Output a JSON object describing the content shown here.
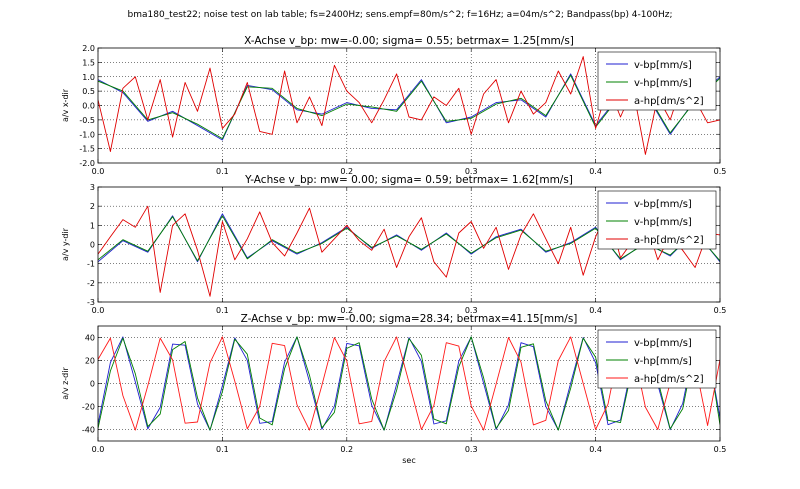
{
  "figure": {
    "suptitle": "bma180_test22; noise test on lab table; fs=2400Hz; sens.empf=80m/s^2; f=16Hz; a=04m/s^2; Bandpass(bp) 4-100Hz;"
  },
  "colors": {
    "v_bp": "#1f1fd0",
    "v_hp": "#008000",
    "a_hp": "#e00000",
    "grid": "#000000"
  },
  "chart_data": [
    {
      "type": "line",
      "title": "X-Achse v_bp: mw=-0.00; sigma= 0.55; betrmax= 1.25[mm/s]",
      "xlabel": "",
      "ylabel": "a/v x-dir",
      "xlim": [
        0,
        0.5
      ],
      "ylim": [
        -2.0,
        2.0
      ],
      "xticks": [
        "0.0",
        "0.1",
        "0.2",
        "0.3",
        "0.4",
        "0.5"
      ],
      "yticks": [
        "-2.0",
        "-1.5",
        "-1.0",
        "-0.5",
        "0.0",
        "0.5",
        "1.0",
        "1.5",
        "2.0"
      ],
      "grid": true,
      "legend_position": "upper-right",
      "series": [
        {
          "name": "v-bp[mm/s]",
          "color": "#1f1fd0",
          "x": [
            0.0,
            0.02,
            0.04,
            0.06,
            0.08,
            0.1,
            0.12,
            0.14,
            0.16,
            0.18,
            0.2,
            0.22,
            0.24,
            0.26,
            0.28,
            0.3,
            0.32,
            0.34,
            0.36,
            0.38,
            0.4,
            0.42,
            0.44,
            0.46,
            0.48,
            0.5
          ],
          "y": [
            0.9,
            0.45,
            -0.55,
            -0.2,
            -0.7,
            -1.2,
            0.7,
            0.55,
            -0.15,
            -0.3,
            0.1,
            -0.1,
            -0.15,
            0.9,
            -0.6,
            -0.4,
            0.1,
            0.2,
            -0.4,
            1.1,
            -0.7,
            0.4,
            0.45,
            -1.0,
            0.2,
            1.0
          ]
        },
        {
          "name": "v-hp[mm/s]",
          "color": "#008000",
          "x": [
            0.0,
            0.02,
            0.04,
            0.06,
            0.08,
            0.1,
            0.12,
            0.14,
            0.16,
            0.18,
            0.2,
            0.22,
            0.24,
            0.26,
            0.28,
            0.3,
            0.32,
            0.34,
            0.36,
            0.38,
            0.4,
            0.42,
            0.44,
            0.46,
            0.48,
            0.5
          ],
          "y": [
            0.85,
            0.5,
            -0.5,
            -0.25,
            -0.65,
            -1.15,
            0.65,
            0.6,
            -0.1,
            -0.35,
            0.05,
            -0.05,
            -0.2,
            0.85,
            -0.55,
            -0.45,
            0.05,
            0.25,
            -0.35,
            1.05,
            -0.75,
            0.35,
            0.5,
            -0.95,
            0.15,
            0.95
          ]
        },
        {
          "name": "a-hp[dm/s^2]",
          "color": "#e00000",
          "x": [
            0.0,
            0.01,
            0.02,
            0.03,
            0.04,
            0.05,
            0.06,
            0.07,
            0.08,
            0.09,
            0.1,
            0.11,
            0.12,
            0.13,
            0.14,
            0.15,
            0.16,
            0.17,
            0.18,
            0.19,
            0.2,
            0.21,
            0.22,
            0.23,
            0.24,
            0.25,
            0.26,
            0.27,
            0.28,
            0.29,
            0.3,
            0.31,
            0.32,
            0.33,
            0.34,
            0.35,
            0.36,
            0.37,
            0.38,
            0.39,
            0.4,
            0.41,
            0.42,
            0.43,
            0.44,
            0.45,
            0.46,
            0.47,
            0.48,
            0.49,
            0.5
          ],
          "y": [
            0.2,
            -1.6,
            0.6,
            1.0,
            -0.5,
            0.9,
            -1.1,
            0.8,
            -0.2,
            1.3,
            -0.8,
            -0.3,
            0.8,
            -0.9,
            -1.0,
            1.2,
            -0.6,
            0.3,
            -0.7,
            1.4,
            0.5,
            0.1,
            -0.6,
            0.2,
            1.1,
            -0.4,
            -0.5,
            0.3,
            0.0,
            0.6,
            -1.0,
            0.4,
            0.9,
            -0.6,
            0.5,
            -0.3,
            0.1,
            1.2,
            0.4,
            1.7,
            -0.8,
            0.7,
            -0.4,
            0.6,
            -1.7,
            0.3,
            -0.5,
            0.8,
            0.2,
            -0.6,
            -0.5
          ]
        }
      ]
    },
    {
      "type": "line",
      "title": "Y-Achse v_bp: mw= 0.00; sigma= 0.59; betrmax= 1.62[mm/s]",
      "xlabel": "",
      "ylabel": "a/v y-dir",
      "xlim": [
        0,
        0.5
      ],
      "ylim": [
        -3,
        3
      ],
      "xticks": [
        "0.0",
        "0.1",
        "0.2",
        "0.3",
        "0.4",
        "0.5"
      ],
      "yticks": [
        "-3",
        "-2",
        "-1",
        "0",
        "1",
        "2",
        "3"
      ],
      "grid": true,
      "legend_position": "upper-right",
      "series": [
        {
          "name": "v-bp[mm/s]",
          "color": "#1f1fd0",
          "x": [
            0.0,
            0.02,
            0.04,
            0.06,
            0.08,
            0.1,
            0.12,
            0.14,
            0.16,
            0.18,
            0.2,
            0.22,
            0.24,
            0.26,
            0.28,
            0.3,
            0.32,
            0.34,
            0.36,
            0.38,
            0.4,
            0.42,
            0.44,
            0.46,
            0.48,
            0.5
          ],
          "y": [
            -0.9,
            0.2,
            -0.4,
            1.5,
            -0.9,
            1.6,
            -0.7,
            0.2,
            -0.5,
            0.1,
            0.9,
            -0.2,
            0.5,
            -0.3,
            0.6,
            -0.5,
            0.4,
            0.8,
            -0.4,
            0.1,
            0.9,
            -0.8,
            0.1,
            -0.6,
            0.7,
            -0.9
          ]
        },
        {
          "name": "v-hp[mm/s]",
          "color": "#008000",
          "x": [
            0.0,
            0.02,
            0.04,
            0.06,
            0.08,
            0.1,
            0.12,
            0.14,
            0.16,
            0.18,
            0.2,
            0.22,
            0.24,
            0.26,
            0.28,
            0.3,
            0.32,
            0.34,
            0.36,
            0.38,
            0.4,
            0.42,
            0.44,
            0.46,
            0.48,
            0.5
          ],
          "y": [
            -0.8,
            0.25,
            -0.35,
            1.45,
            -0.85,
            1.5,
            -0.75,
            0.25,
            -0.45,
            0.05,
            0.85,
            -0.15,
            0.45,
            -0.25,
            0.55,
            -0.45,
            0.35,
            0.75,
            -0.35,
            0.05,
            0.85,
            -0.75,
            0.05,
            -0.55,
            0.65,
            -0.85
          ]
        },
        {
          "name": "a-hp[dm/s^2]",
          "color": "#e00000",
          "x": [
            0.0,
            0.01,
            0.02,
            0.03,
            0.04,
            0.05,
            0.06,
            0.07,
            0.08,
            0.09,
            0.1,
            0.11,
            0.12,
            0.13,
            0.14,
            0.15,
            0.16,
            0.17,
            0.18,
            0.19,
            0.2,
            0.21,
            0.22,
            0.23,
            0.24,
            0.25,
            0.26,
            0.27,
            0.28,
            0.29,
            0.3,
            0.31,
            0.32,
            0.33,
            0.34,
            0.35,
            0.36,
            0.37,
            0.38,
            0.39,
            0.4,
            0.41,
            0.42,
            0.43,
            0.44,
            0.45,
            0.46,
            0.47,
            0.48,
            0.49,
            0.5
          ],
          "y": [
            -0.5,
            0.4,
            1.3,
            0.9,
            2.0,
            -2.5,
            1.0,
            1.6,
            -0.3,
            -2.7,
            1.2,
            -0.8,
            0.3,
            1.7,
            0.1,
            -0.6,
            0.6,
            1.9,
            -0.4,
            0.3,
            1.0,
            0.2,
            -0.3,
            0.8,
            -1.2,
            0.4,
            1.4,
            -0.9,
            -1.7,
            0.6,
            1.2,
            -0.2,
            0.9,
            -1.3,
            0.5,
            1.6,
            0.3,
            -1.0,
            0.9,
            -1.6,
            0.4,
            1.8,
            -0.7,
            0.2,
            1.3,
            -0.8,
            0.5,
            -0.3,
            -1.2,
            0.6,
            0.5
          ]
        }
      ]
    },
    {
      "type": "line",
      "title": "Z-Achse v_bp: mw=-0.00; sigma=28.34; betrmax=41.15[mm/s]",
      "xlabel": "sec",
      "ylabel": "a/v z-dir",
      "xlim": [
        0,
        0.5
      ],
      "ylim": [
        -50,
        50
      ],
      "xticks": [
        "0.0",
        "0.1",
        "0.2",
        "0.3",
        "0.4",
        "0.5"
      ],
      "yticks": [
        "-40",
        "-20",
        "0",
        "20",
        "40"
      ],
      "grid": true,
      "legend_position": "upper-right",
      "series": [
        {
          "name": "v-bp[mm/s]",
          "color": "#1f1fd0",
          "x": [
            0.0,
            0.01,
            0.02,
            0.03,
            0.04,
            0.05,
            0.06,
            0.07,
            0.08,
            0.09,
            0.1,
            0.11,
            0.12,
            0.13,
            0.14,
            0.15,
            0.16,
            0.17,
            0.18,
            0.19,
            0.2,
            0.21,
            0.22,
            0.23,
            0.24,
            0.25,
            0.26,
            0.27,
            0.28,
            0.29,
            0.3,
            0.31,
            0.32,
            0.33,
            0.34,
            0.35,
            0.36,
            0.37,
            0.38,
            0.39,
            0.4,
            0.41,
            0.42,
            0.43,
            0.44,
            0.45,
            0.46,
            0.47,
            0.48,
            0.49,
            0.5
          ],
          "y": [
            -35.5,
            18.3,
            40.5,
            1.4,
            -39.5,
            -20.8,
            34.3,
            33.3,
            -17.9,
            -40.7,
            -2.0,
            39.7,
            20.2,
            -34.6,
            -33.1,
            18.5,
            40.6,
            1.4,
            -39.8,
            -19.7,
            34.9,
            32.8,
            -18.9,
            -40.6,
            -0.8,
            39.9,
            19.2,
            -35.2,
            -32.4,
            19.4,
            40.5,
            0.2,
            -40.0,
            -18.6,
            35.5,
            32.0,
            -19.9,
            -40.4,
            0.4,
            40.1,
            18.1,
            -35.8,
            -31.7,
            20.4,
            40.3,
            -1.0,
            -40.2,
            -17.5,
            36.1,
            31.3,
            -30.0
          ]
        },
        {
          "name": "v-hp[mm/s]",
          "color": "#008000",
          "x": [
            0.0,
            0.01,
            0.02,
            0.03,
            0.04,
            0.05,
            0.06,
            0.07,
            0.08,
            0.09,
            0.1,
            0.11,
            0.12,
            0.13,
            0.14,
            0.15,
            0.16,
            0.17,
            0.18,
            0.19,
            0.2,
            0.21,
            0.22,
            0.23,
            0.24,
            0.25,
            0.26,
            0.27,
            0.28,
            0.29,
            0.3,
            0.31,
            0.32,
            0.33,
            0.34,
            0.35,
            0.36,
            0.37,
            0.38,
            0.39,
            0.4,
            0.41,
            0.42,
            0.43,
            0.44,
            0.45,
            0.46,
            0.47,
            0.48,
            0.49,
            0.5
          ],
          "y": [
            -39.0,
            11.0,
            39.5,
            8.5,
            -37.5,
            -26.5,
            29.5,
            36.5,
            -12.5,
            -40.5,
            -7.0,
            38.5,
            25.5,
            -30.0,
            -36.0,
            13.0,
            40.5,
            7.0,
            -38.5,
            -25.0,
            30.5,
            35.5,
            -13.5,
            -40.5,
            -6.0,
            39.0,
            24.5,
            -31.0,
            -35.0,
            14.5,
            40.5,
            5.0,
            -39.0,
            -23.5,
            31.5,
            34.5,
            -15.0,
            -40.5,
            -4.0,
            39.5,
            23.0,
            -32.0,
            -34.0,
            16.0,
            40.0,
            3.0,
            -39.5,
            -22.0,
            32.5,
            33.5,
            -36.0
          ]
        },
        {
          "name": "a-hp[dm/s^2]",
          "color": "#ff1a1a",
          "x": [
            0.0,
            0.01,
            0.02,
            0.03,
            0.04,
            0.05,
            0.06,
            0.07,
            0.08,
            0.09,
            0.1,
            0.11,
            0.12,
            0.13,
            0.14,
            0.15,
            0.16,
            0.17,
            0.18,
            0.19,
            0.2,
            0.21,
            0.22,
            0.23,
            0.24,
            0.25,
            0.26,
            0.27,
            0.28,
            0.29,
            0.3,
            0.31,
            0.32,
            0.33,
            0.34,
            0.35,
            0.36,
            0.37,
            0.38,
            0.39,
            0.4,
            0.41,
            0.42,
            0.43,
            0.44,
            0.45,
            0.46,
            0.47,
            0.48,
            0.49,
            0.5
          ],
          "y": [
            21.0,
            39.5,
            -10.5,
            -40.5,
            -2.0,
            39.5,
            20.5,
            -34.5,
            -33.5,
            18.0,
            40.5,
            2.0,
            -39.5,
            -20.0,
            35.0,
            33.0,
            -18.5,
            -40.5,
            -1.5,
            40.0,
            19.5,
            -35.0,
            -33.0,
            19.0,
            40.5,
            1.0,
            -40.0,
            -19.0,
            35.5,
            32.5,
            -19.5,
            -40.5,
            -0.5,
            40.0,
            18.5,
            -36.0,
            -32.0,
            20.0,
            40.5,
            0.0,
            -40.0,
            -18.0,
            36.0,
            31.5,
            -20.5,
            -40.0,
            0.5,
            40.0,
            17.5,
            -36.5,
            21.0
          ]
        }
      ]
    }
  ]
}
